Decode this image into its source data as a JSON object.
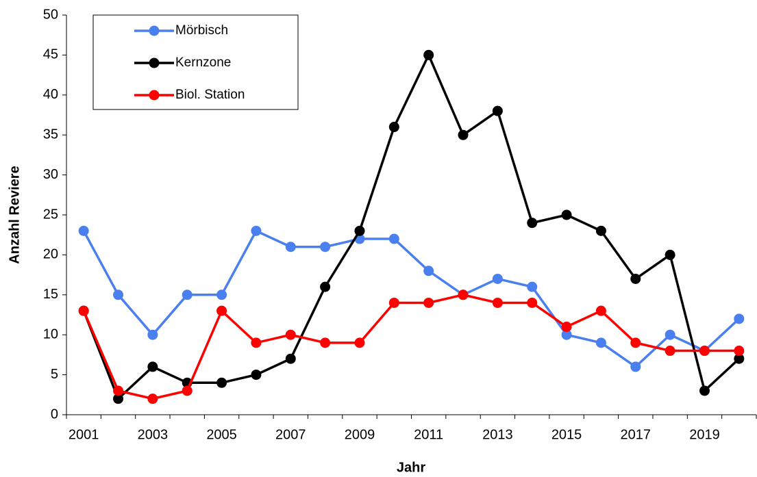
{
  "chart_data": {
    "type": "line",
    "x_label": "Jahr",
    "y_label": "Anzahl Reviere",
    "categories": [
      "2001",
      null,
      "2003",
      null,
      "2005",
      null,
      "2007",
      null,
      "2009",
      null,
      "2011",
      null,
      "2013",
      null,
      "2015",
      null,
      "2017",
      null,
      "2019",
      null
    ],
    "ylim": [
      0,
      50
    ],
    "yticks": [
      0,
      5,
      10,
      15,
      20,
      25,
      30,
      35,
      40,
      45,
      50
    ],
    "grid": false,
    "legend": "top-left",
    "series": [
      {
        "name": "Mörbisch",
        "color": "#4a7ff0",
        "values": [
          23,
          15,
          10,
          15,
          15,
          23,
          21,
          21,
          22,
          22,
          18,
          15,
          17,
          16,
          10,
          9,
          6,
          10,
          8,
          12
        ]
      },
      {
        "name": "Kernzone",
        "color": "#000000",
        "values": [
          13,
          2,
          6,
          4,
          4,
          5,
          7,
          16,
          23,
          36,
          45,
          35,
          38,
          24,
          25,
          23,
          17,
          20,
          3,
          7
        ]
      },
      {
        "name": "Biol. Station",
        "color": "#ff0000",
        "values": [
          13,
          3,
          2,
          3,
          13,
          9,
          10,
          9,
          9,
          14,
          14,
          15,
          14,
          14,
          11,
          13,
          9,
          8,
          8,
          8
        ]
      }
    ]
  }
}
